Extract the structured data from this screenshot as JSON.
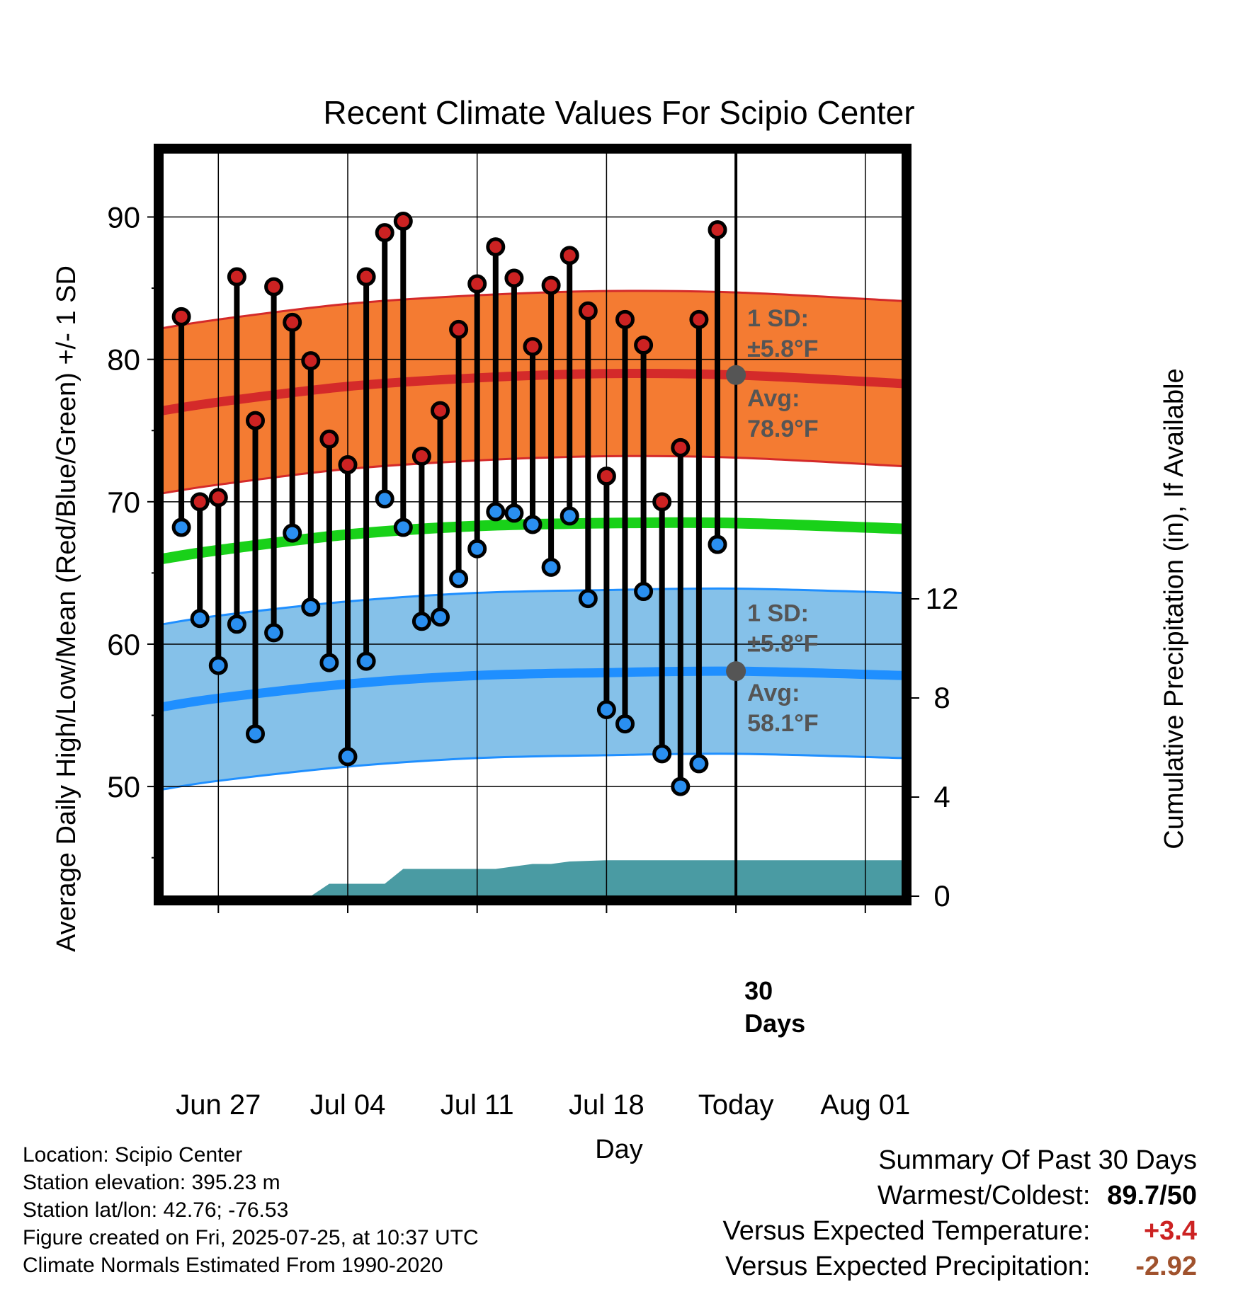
{
  "colors": {
    "high_band": "#f47b32",
    "high_edge": "#d42a2a",
    "high_avg": "#d42a2a",
    "low_band": "#85c1e9",
    "low_edge": "#1f8fff",
    "low_avg": "#1f8fff",
    "mean_line": "#19d119",
    "precip_fill": "#4a9ba3",
    "high_marker": "#cc2222",
    "low_marker": "#2a8ff0",
    "annotation": "#555555",
    "positive": "#cc2222",
    "precip_diff": "#a0522d"
  },
  "chart_data": {
    "type": "line",
    "title": "Recent Climate Values For Scipio Center",
    "xlabel": "Day",
    "ylabel": "Average Daily High/Low/Mean (Red/Blue/Green) +/- 1 SD",
    "y2label": "Cumulative Precipitation (in), If Available",
    "xlim": [
      "2025-06-24",
      "2025-08-03"
    ],
    "ylim": [
      42.3,
      94.5
    ],
    "y2lim": [
      0,
      30
    ],
    "x_ticks": [
      "2025-06-27",
      "2025-07-04",
      "2025-07-11",
      "2025-07-18",
      "2025-07-25",
      "2025-08-01"
    ],
    "x_tick_labels": [
      "Jun 27",
      "Jul 04",
      "Jul 11",
      "Jul 18",
      "Today",
      "Aug 01"
    ],
    "y_ticks": [
      50,
      60,
      70,
      80,
      90
    ],
    "y_tick_labels": [
      "50",
      "60",
      "70",
      "80",
      "90"
    ],
    "y_minor_ticks": [
      45,
      55,
      65,
      75,
      85
    ],
    "y2_ticks": [
      0,
      4,
      8,
      12
    ],
    "y2_tick_labels": [
      "0",
      "4",
      "8",
      "12"
    ],
    "grid": true,
    "today": "2025-07-25",
    "window_label": "30\nDays",
    "daily": {
      "dates": [
        "2025-06-25",
        "2025-06-26",
        "2025-06-27",
        "2025-06-28",
        "2025-06-29",
        "2025-06-30",
        "2025-07-01",
        "2025-07-02",
        "2025-07-03",
        "2025-07-04",
        "2025-07-05",
        "2025-07-06",
        "2025-07-07",
        "2025-07-08",
        "2025-07-09",
        "2025-07-10",
        "2025-07-11",
        "2025-07-12",
        "2025-07-13",
        "2025-07-14",
        "2025-07-15",
        "2025-07-16",
        "2025-07-17",
        "2025-07-18",
        "2025-07-19",
        "2025-07-20",
        "2025-07-21",
        "2025-07-22",
        "2025-07-23",
        "2025-07-24"
      ],
      "high": [
        83.0,
        70.0,
        70.3,
        85.8,
        75.7,
        85.1,
        82.6,
        79.9,
        74.4,
        72.6,
        85.8,
        88.9,
        89.7,
        73.2,
        76.4,
        82.1,
        85.3,
        87.9,
        85.7,
        80.9,
        85.2,
        87.3,
        83.4,
        71.8,
        82.8,
        81.0,
        70.0,
        73.8,
        82.8,
        89.1
      ],
      "low": [
        68.2,
        61.8,
        58.5,
        61.4,
        53.7,
        60.8,
        67.8,
        62.6,
        58.7,
        52.1,
        58.8,
        70.2,
        68.2,
        61.6,
        61.9,
        64.6,
        66.7,
        69.3,
        69.2,
        68.4,
        65.4,
        69.0,
        63.2,
        55.4,
        54.4,
        63.7,
        52.3,
        50.0,
        51.6,
        67.0
      ]
    },
    "series": [
      {
        "name": "Avg",
        "kind": "normal_high",
        "x": [
          "2025-06-24",
          "2025-06-27",
          "2025-07-04",
          "2025-07-11",
          "2025-07-18",
          "2025-07-25",
          "2025-08-03"
        ],
        "values": [
          76.4,
          77.0,
          78.1,
          78.7,
          79.0,
          78.9,
          78.3
        ],
        "sd": 5.8
      },
      {
        "name": "Avg",
        "kind": "normal_low",
        "x": [
          "2025-06-24",
          "2025-06-27",
          "2025-07-04",
          "2025-07-11",
          "2025-07-18",
          "2025-07-25",
          "2025-08-03"
        ],
        "values": [
          55.6,
          56.2,
          57.2,
          57.8,
          58.0,
          58.1,
          57.8
        ],
        "sd": 5.8
      },
      {
        "kind": "normal_mean",
        "x": [
          "2025-06-24",
          "2025-06-27",
          "2025-07-04",
          "2025-07-11",
          "2025-07-18",
          "2025-07-25",
          "2025-08-03"
        ],
        "values": [
          66.0,
          66.6,
          67.7,
          68.3,
          68.5,
          68.5,
          68.1
        ]
      },
      {
        "kind": "cumulative_precip",
        "x": [
          "2025-06-24",
          "2025-07-02",
          "2025-07-03",
          "2025-07-06",
          "2025-07-07",
          "2025-07-12",
          "2025-07-14",
          "2025-07-15",
          "2025-07-16",
          "2025-07-18",
          "2025-07-24",
          "2025-08-03"
        ],
        "values": [
          0,
          0,
          0.5,
          0.5,
          1.1,
          1.1,
          1.3,
          1.3,
          1.4,
          1.45,
          1.45,
          1.45
        ]
      }
    ],
    "annotations": [
      {
        "id": "high_sd",
        "label": "1 SD:",
        "value": "±5.8°F"
      },
      {
        "id": "high_avg",
        "label": "Avg:",
        "value": "78.9°F"
      },
      {
        "id": "low_sd",
        "label": "1 SD:",
        "value": "±5.8°F"
      },
      {
        "id": "low_avg",
        "label": "Avg:",
        "value": "58.1°F"
      }
    ]
  },
  "info": {
    "location": "Location: Scipio Center",
    "elevation": "Station elevation: 395.23 m",
    "latlon": "Station lat/lon: 42.76; -76.53",
    "created": "Figure created on Fri, 2025-07-25, at 10:37 UTC",
    "normals": "Climate Normals Estimated From 1990-2020"
  },
  "summary": {
    "title": "Summary Of Past 30 Days",
    "warmest_coldest_label": "Warmest/Coldest:",
    "warmest_coldest_value": "89.7/50",
    "temp_label": "Versus Expected Temperature:",
    "temp_value": "+3.4",
    "precip_label": "Versus Expected Precipitation:",
    "precip_value": "-2.92"
  }
}
